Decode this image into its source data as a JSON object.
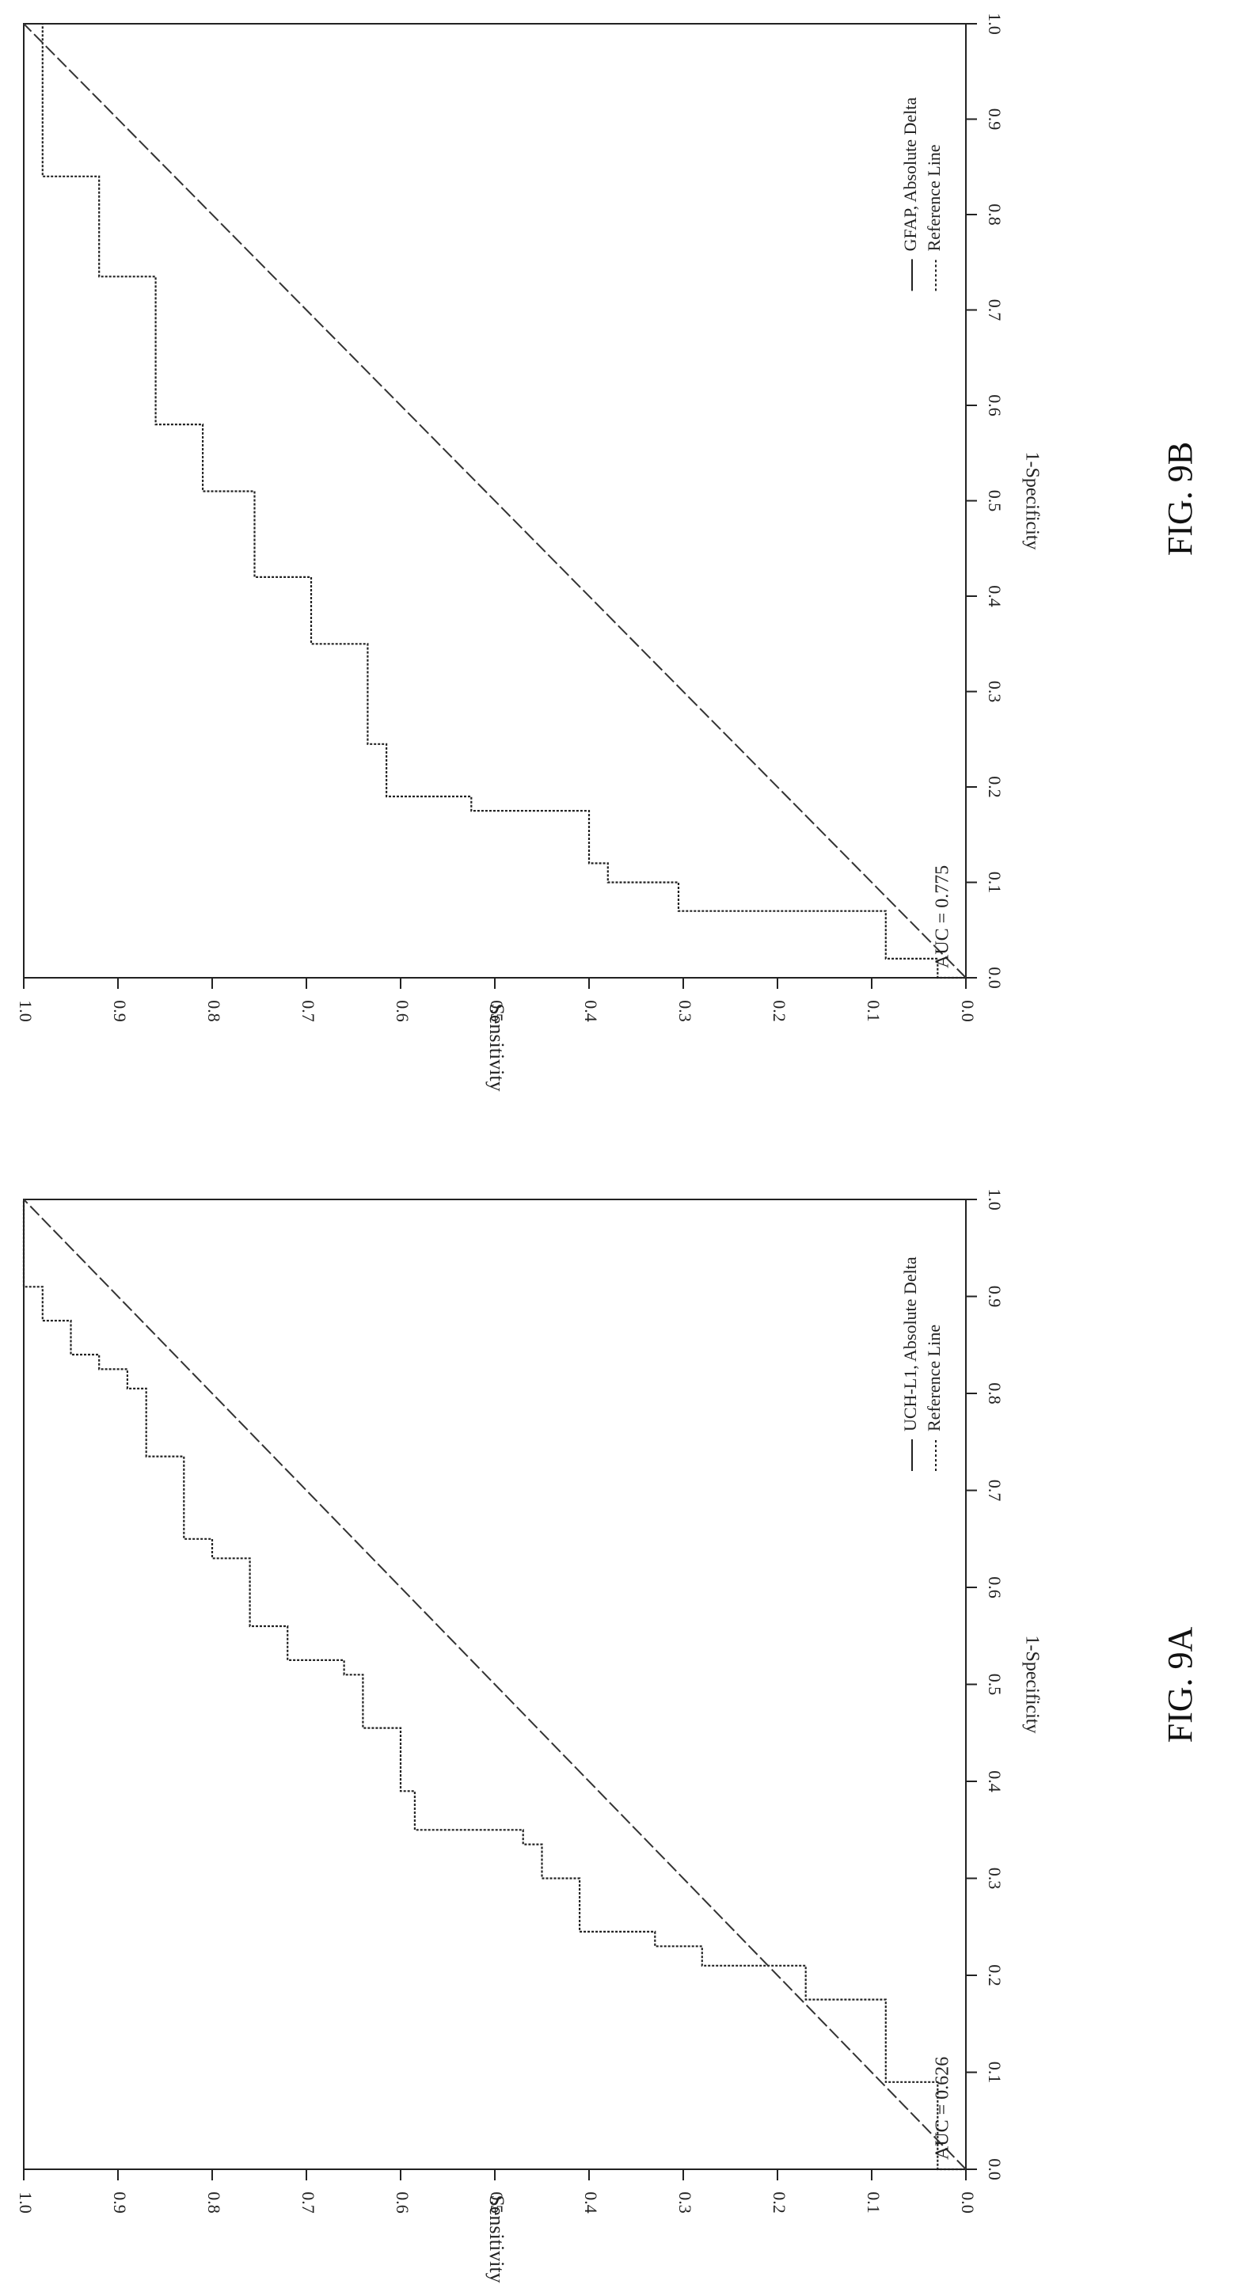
{
  "chart_data": [
    {
      "type": "line",
      "figure_label": "FIG. 9A",
      "annotation": "AUC = 0.626",
      "xlabel": "1-Specificity",
      "ylabel": "Sensitivity",
      "xlim": [
        0,
        1
      ],
      "ylim": [
        0,
        1
      ],
      "xticks": [
        "0.0",
        "0.1",
        "0.2",
        "0.3",
        "0.4",
        "0.5",
        "0.6",
        "0.7",
        "0.8",
        "0.9",
        "1.0"
      ],
      "yticks": [
        "0.0",
        "0.1",
        "0.2",
        "0.3",
        "0.4",
        "0.5",
        "0.6",
        "0.7",
        "0.8",
        "0.9",
        "1.0"
      ],
      "legend_position": "bottom-right",
      "series": [
        {
          "name": "UCH-L1, Absolute Delta",
          "style": "step",
          "x": [
            0.0,
            0.0,
            0.09,
            0.09,
            0.175,
            0.175,
            0.21,
            0.21,
            0.23,
            0.23,
            0.245,
            0.245,
            0.3,
            0.3,
            0.335,
            0.335,
            0.35,
            0.35,
            0.39,
            0.39,
            0.455,
            0.455,
            0.51,
            0.51,
            0.525,
            0.525,
            0.56,
            0.56,
            0.63,
            0.63,
            0.65,
            0.65,
            0.735,
            0.735,
            0.805,
            0.805,
            0.825,
            0.825,
            0.84,
            0.84,
            0.875,
            0.875,
            0.91,
            0.91,
            1.0
          ],
          "y": [
            0.0,
            0.03,
            0.03,
            0.085,
            0.085,
            0.17,
            0.17,
            0.28,
            0.28,
            0.33,
            0.33,
            0.41,
            0.41,
            0.45,
            0.45,
            0.47,
            0.47,
            0.585,
            0.585,
            0.6,
            0.6,
            0.64,
            0.64,
            0.66,
            0.66,
            0.72,
            0.72,
            0.76,
            0.76,
            0.8,
            0.8,
            0.83,
            0.83,
            0.87,
            0.87,
            0.89,
            0.89,
            0.92,
            0.92,
            0.95,
            0.95,
            0.98,
            0.98,
            1.0,
            1.0
          ]
        },
        {
          "name": "Reference Line",
          "style": "diagonal",
          "x": [
            0,
            1
          ],
          "y": [
            0,
            1
          ]
        }
      ]
    },
    {
      "type": "line",
      "figure_label": "FIG. 9B",
      "annotation": "AUC = 0.775",
      "xlabel": "1-Specificity",
      "ylabel": "Sensitivity",
      "xlim": [
        0,
        1
      ],
      "ylim": [
        0,
        1
      ],
      "xticks": [
        "0.0",
        "0.1",
        "0.2",
        "0.3",
        "0.4",
        "0.5",
        "0.6",
        "0.7",
        "0.8",
        "0.9",
        "1.0"
      ],
      "yticks": [
        "0.0",
        "0.1",
        "0.2",
        "0.3",
        "0.4",
        "0.5",
        "0.6",
        "0.7",
        "0.8",
        "0.9",
        "1.0"
      ],
      "legend_position": "bottom-right",
      "series": [
        {
          "name": "GFAP, Absolute Delta",
          "style": "step",
          "x": [
            0.0,
            0.0,
            0.02,
            0.02,
            0.07,
            0.07,
            0.1,
            0.1,
            0.12,
            0.12,
            0.175,
            0.175,
            0.19,
            0.19,
            0.245,
            0.245,
            0.35,
            0.35,
            0.42,
            0.42,
            0.51,
            0.51,
            0.58,
            0.58,
            0.735,
            0.735,
            0.84,
            0.84,
            1.0
          ],
          "y": [
            0.0,
            0.03,
            0.03,
            0.085,
            0.085,
            0.305,
            0.305,
            0.38,
            0.38,
            0.4,
            0.4,
            0.525,
            0.525,
            0.615,
            0.615,
            0.635,
            0.635,
            0.695,
            0.695,
            0.755,
            0.755,
            0.81,
            0.81,
            0.86,
            0.86,
            0.92,
            0.92,
            0.98,
            0.98
          ]
        },
        {
          "name": "Reference Line",
          "style": "diagonal",
          "x": [
            0,
            1
          ],
          "y": [
            0,
            1
          ]
        }
      ]
    }
  ]
}
